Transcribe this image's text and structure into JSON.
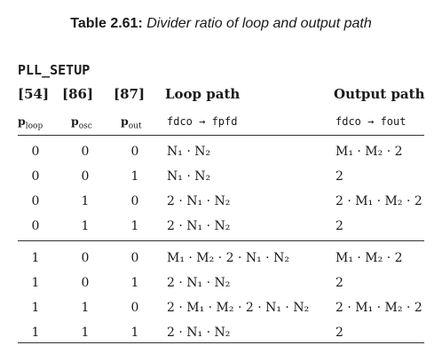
{
  "caption": {
    "label": "Table 2.61:",
    "text": "Divider ratio of loop and output path"
  },
  "register": "PLL_SETUP",
  "headers": {
    "bit_a": "[54]",
    "bit_b": "[86]",
    "bit_c": "[87]",
    "loop": "Loop path",
    "output": "Output path"
  },
  "subheaders": {
    "bit_a": {
      "base": "p",
      "sub": "loop"
    },
    "bit_b": {
      "base": "p",
      "sub": "osc"
    },
    "bit_c": {
      "base": "p",
      "sub": "out"
    },
    "loop": "fdco → fpfd",
    "output": "fdco → fout"
  },
  "rows": [
    {
      "a": "0",
      "b": "0",
      "c": "0",
      "loop": "N₁ · N₂",
      "output": "M₁ · M₂ · 2"
    },
    {
      "a": "0",
      "b": "0",
      "c": "1",
      "loop": "N₁ · N₂",
      "output": "2"
    },
    {
      "a": "0",
      "b": "1",
      "c": "0",
      "loop": "2 · N₁ · N₂",
      "output": "2 · M₁ · M₂ · 2"
    },
    {
      "a": "0",
      "b": "1",
      "c": "1",
      "loop": "2 · N₁ · N₂",
      "output": "2"
    },
    {
      "a": "1",
      "b": "0",
      "c": "0",
      "loop": "M₁ · M₂ · 2 · N₁ · N₂",
      "output": "M₁ · M₂ · 2"
    },
    {
      "a": "1",
      "b": "0",
      "c": "1",
      "loop": "2 · N₁ · N₂",
      "output": "2"
    },
    {
      "a": "1",
      "b": "1",
      "c": "0",
      "loop": "2 · M₁ · M₂ · 2 · N₁ · N₂",
      "output": "2 · M₁ · M₂ · 2"
    },
    {
      "a": "1",
      "b": "1",
      "c": "1",
      "loop": "2 · N₁ · N₂",
      "output": "2"
    }
  ]
}
